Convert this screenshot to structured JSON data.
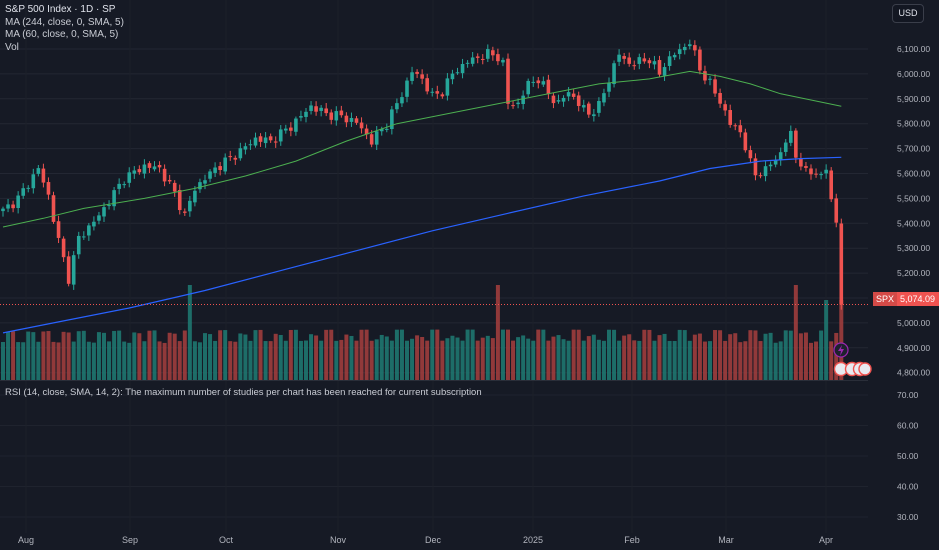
{
  "header": {
    "title": "S&P 500 Index · 1D · SP",
    "studies": [
      "MA (244, close, 0, SMA, 5)",
      "MA (60, close, 0, SMA, 5)",
      "Vol"
    ]
  },
  "currency_button": "USD",
  "last_price": {
    "symbol": "SPX",
    "value": "5,074.09"
  },
  "rsi_note": "RSI (14, close, SMA, 14, 2): The maximum number of studies per chart has been reached for current subscription",
  "colors": {
    "background": "#161a25",
    "up": "#26a69a",
    "down": "#ef5350",
    "ma244": "#2962ff",
    "ma60": "#4caf50"
  },
  "chart_data": {
    "type": "candlestick",
    "interval": "1D",
    "price_axis": {
      "ticks": [
        6100,
        6000,
        5900,
        5800,
        5700,
        5600,
        5500,
        5400,
        5300,
        5200,
        5100,
        5000,
        4900,
        4800
      ],
      "tick_labels": [
        "6,100.00",
        "6,000.00",
        "5,900.00",
        "5,800.00",
        "5,700.00",
        "5,600.00",
        "5,500.00",
        "5,400.00",
        "5,300.00",
        "5,200.00",
        "5,100.00",
        "5,000.00",
        "4,900.00",
        "4,800.00"
      ]
    },
    "rsi_axis": {
      "ticks": [
        70,
        60,
        50,
        40,
        30
      ],
      "tick_labels": [
        "70.00",
        "60.00",
        "50.00",
        "40.00",
        "30.00"
      ]
    },
    "x_labels": [
      "Aug",
      "Sep",
      "Oct",
      "Nov",
      "Dec",
      "2025",
      "Feb",
      "Mar",
      "Apr"
    ],
    "last_close": 5074.09,
    "waypoints": [
      [
        0,
        5450
      ],
      [
        3,
        5500
      ],
      [
        7,
        5620
      ],
      [
        9,
        5510
      ],
      [
        11,
        5330
      ],
      [
        13,
        5180
      ],
      [
        15,
        5340
      ],
      [
        19,
        5430
      ],
      [
        24,
        5580
      ],
      [
        28,
        5630
      ],
      [
        31,
        5620
      ],
      [
        34,
        5520
      ],
      [
        36,
        5430
      ],
      [
        38,
        5540
      ],
      [
        42,
        5620
      ],
      [
        47,
        5690
      ],
      [
        50,
        5740
      ],
      [
        53,
        5730
      ],
      [
        57,
        5790
      ],
      [
        61,
        5870
      ],
      [
        64,
        5840
      ],
      [
        67,
        5830
      ],
      [
        70,
        5805
      ],
      [
        73,
        5730
      ],
      [
        76,
        5800
      ],
      [
        79,
        5920
      ],
      [
        81,
        6010
      ],
      [
        83,
        5980
      ],
      [
        85,
        5910
      ],
      [
        87,
        5930
      ],
      [
        89,
        6000
      ],
      [
        92,
        6050
      ],
      [
        96,
        6080
      ],
      [
        98,
        6070
      ],
      [
        99,
        6040
      ],
      [
        100,
        5880
      ],
      [
        102,
        5880
      ],
      [
        104,
        5960
      ],
      [
        106,
        5980
      ],
      [
        108,
        5920
      ],
      [
        110,
        5880
      ],
      [
        112,
        5930
      ],
      [
        114,
        5880
      ],
      [
        116,
        5840
      ],
      [
        118,
        5870
      ],
      [
        120,
        5980
      ],
      [
        122,
        6080
      ],
      [
        124,
        6040
      ],
      [
        126,
        6050
      ],
      [
        128,
        6060
      ],
      [
        130,
        6000
      ],
      [
        131,
        6040
      ],
      [
        133,
        6080
      ],
      [
        135,
        6110
      ],
      [
        136,
        6130
      ],
      [
        138,
        6020
      ],
      [
        140,
        5960
      ],
      [
        142,
        5890
      ],
      [
        144,
        5800
      ],
      [
        146,
        5770
      ],
      [
        148,
        5640
      ],
      [
        149,
        5600
      ],
      [
        151,
        5610
      ],
      [
        152,
        5640
      ],
      [
        154,
        5680
      ],
      [
        155,
        5730
      ],
      [
        156,
        5760
      ],
      [
        157,
        5670
      ],
      [
        158,
        5640
      ],
      [
        159,
        5600
      ],
      [
        161,
        5610
      ],
      [
        162,
        5580
      ],
      [
        163,
        5620
      ],
      [
        164,
        5500
      ],
      [
        165,
        5400
      ],
      [
        166,
        5100
      ]
    ],
    "ma244": [
      [
        0,
        4960
      ],
      [
        10,
        5000
      ],
      [
        25,
        5060
      ],
      [
        40,
        5130
      ],
      [
        55,
        5210
      ],
      [
        70,
        5290
      ],
      [
        85,
        5370
      ],
      [
        100,
        5440
      ],
      [
        115,
        5510
      ],
      [
        130,
        5570
      ],
      [
        140,
        5620
      ],
      [
        150,
        5650
      ],
      [
        158,
        5660
      ],
      [
        166,
        5665
      ]
    ],
    "ma60": [
      [
        0,
        5385
      ],
      [
        8,
        5420
      ],
      [
        16,
        5460
      ],
      [
        28,
        5500
      ],
      [
        38,
        5540
      ],
      [
        48,
        5590
      ],
      [
        58,
        5650
      ],
      [
        68,
        5730
      ],
      [
        78,
        5800
      ],
      [
        88,
        5840
      ],
      [
        98,
        5880
      ],
      [
        108,
        5920
      ],
      [
        118,
        5960
      ],
      [
        128,
        5980
      ],
      [
        136,
        6010
      ],
      [
        142,
        5990
      ],
      [
        148,
        5960
      ],
      [
        154,
        5920
      ],
      [
        160,
        5895
      ],
      [
        166,
        5870
      ]
    ]
  }
}
